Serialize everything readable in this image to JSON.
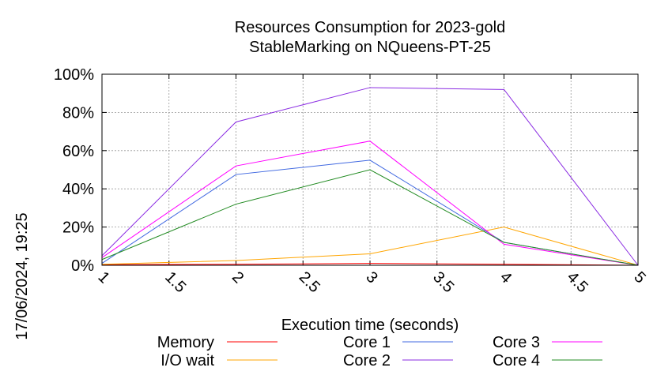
{
  "chart_data": {
    "type": "line",
    "title": [
      "Resources Consumption for 2023-gold",
      "StableMarking on NQueens-PT-25"
    ],
    "xlabel": "Execution time (seconds)",
    "ylabel": "",
    "timestamp": "17/06/2024, 19:25",
    "xlim": [
      1,
      5
    ],
    "ylim": [
      0,
      100
    ],
    "x_ticks": [
      "1",
      "1.5",
      "2",
      "2.5",
      "3",
      "3.5",
      "4",
      "4.5",
      "5"
    ],
    "y_ticks": [
      "0%",
      "20%",
      "40%",
      "60%",
      "80%",
      "100%"
    ],
    "grid": true,
    "legend_position": "bottom",
    "x": [
      1,
      2,
      3,
      4,
      5
    ],
    "series": [
      {
        "name": "Memory",
        "color": "#ff0000",
        "values": [
          0.3,
          0.5,
          1.0,
          0.5,
          0
        ]
      },
      {
        "name": "I/O wait",
        "color": "#ffa500",
        "values": [
          0.5,
          2.5,
          6,
          20,
          0
        ]
      },
      {
        "name": "Core 1",
        "color": "#4169e1",
        "values": [
          1,
          47.5,
          55,
          12,
          0
        ]
      },
      {
        "name": "Core 2",
        "color": "#8a2be2",
        "values": [
          5,
          75,
          93,
          92,
          0
        ]
      },
      {
        "name": "Core 3",
        "color": "#ff00ff",
        "values": [
          4,
          52,
          65,
          11,
          0
        ]
      },
      {
        "name": "Core 4",
        "color": "#228b22",
        "values": [
          3,
          32,
          50,
          12,
          0
        ]
      }
    ]
  }
}
